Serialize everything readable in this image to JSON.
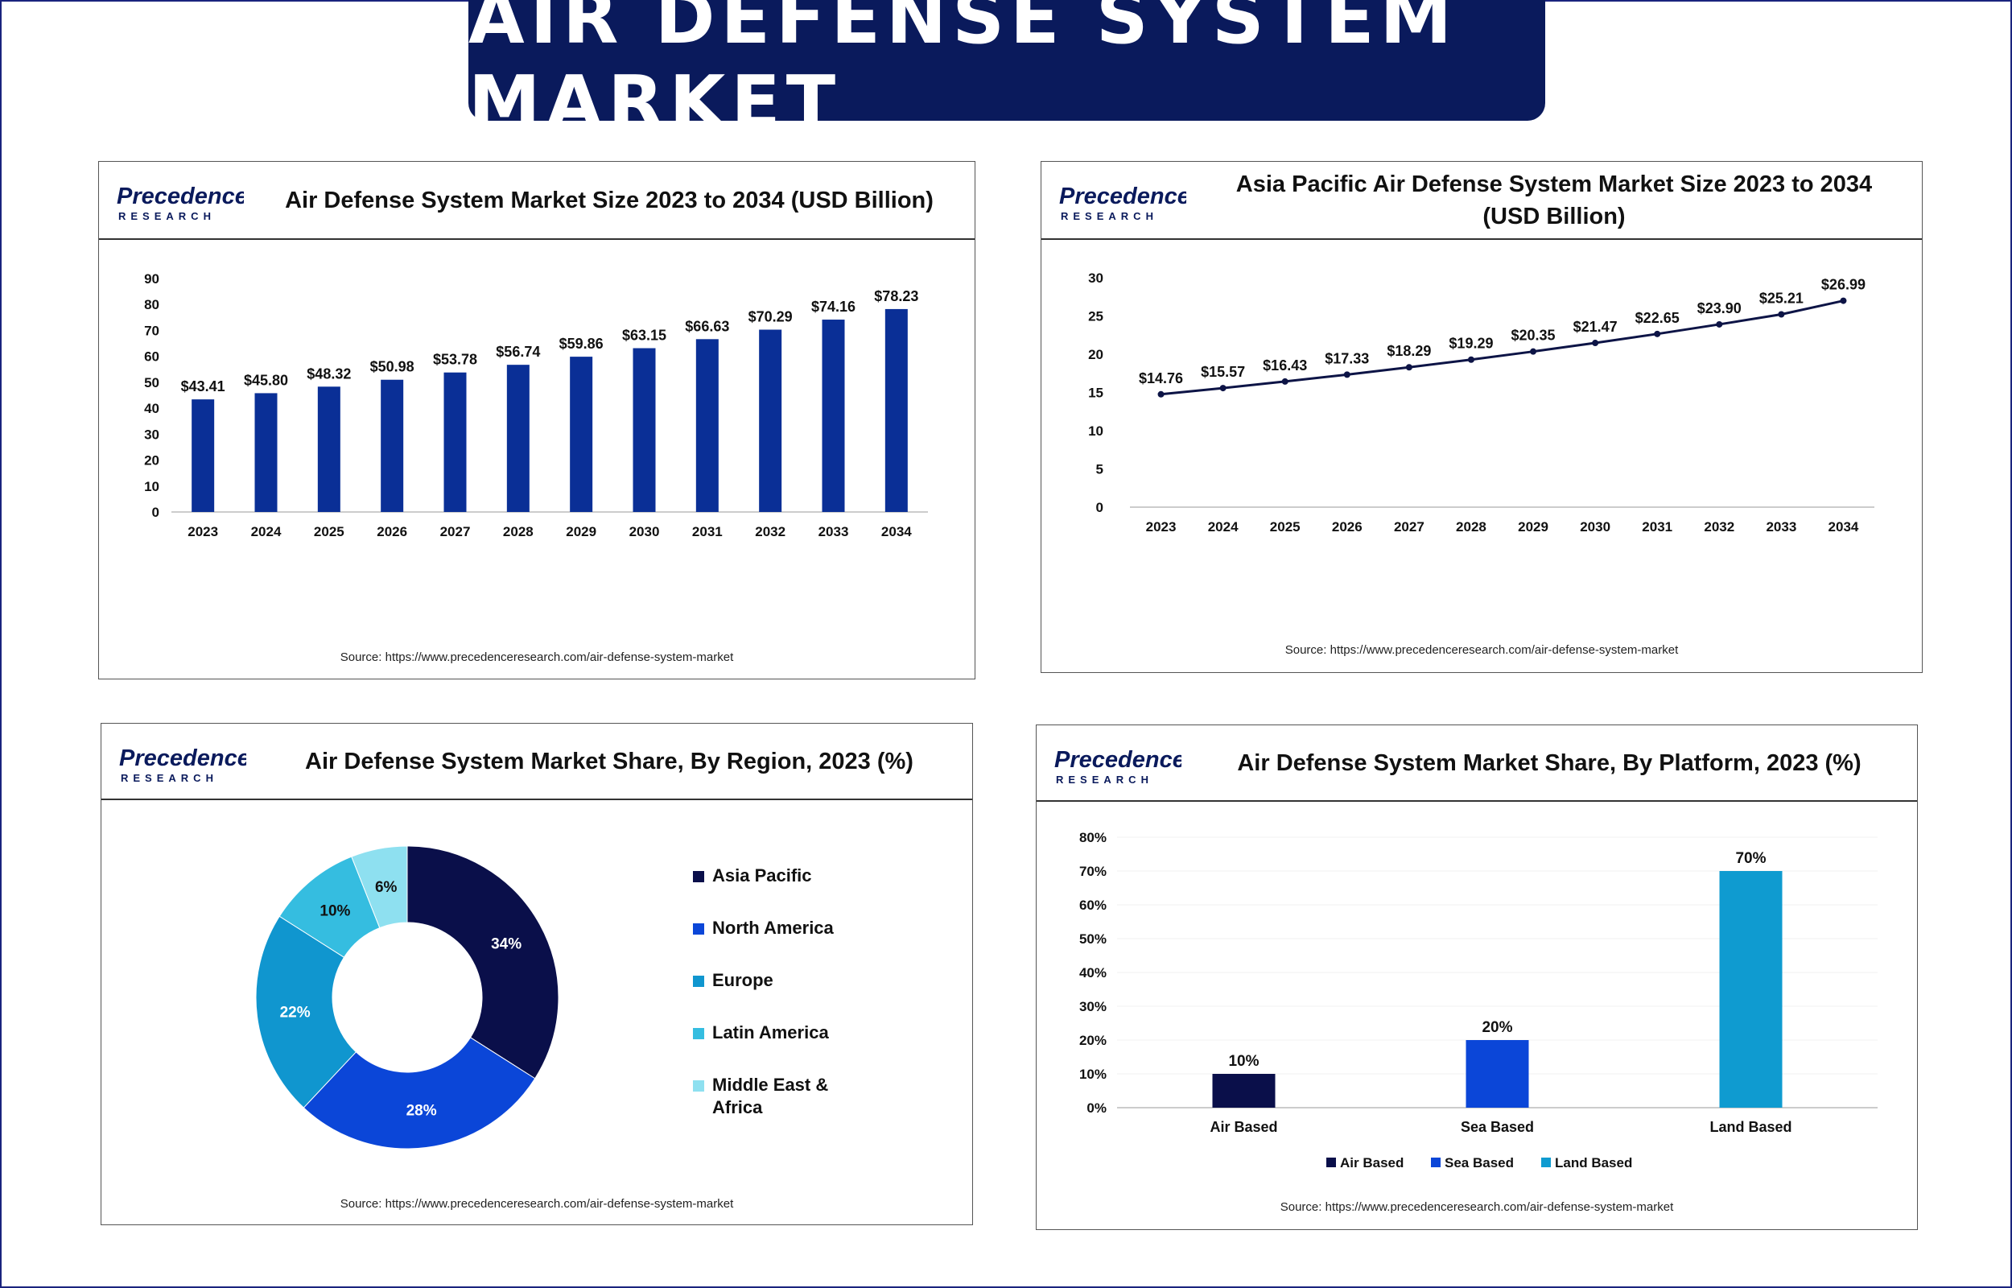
{
  "banner": {
    "title": "AIR DEFENSE SYSTEM MARKET"
  },
  "logo": {
    "brand_main": "Precedence",
    "brand_sub": "RESEARCH"
  },
  "source_text": "Source: https://www.precedenceresearch.com/air-defense-system-market",
  "colors": {
    "navy": "#0a1a5c",
    "bar": "#0a2f96",
    "line": "#0d1446"
  },
  "panels": {
    "market_size": {
      "title": "Air Defense System Market Size 2023 to 2034 (USD Billion)"
    },
    "asia_pacific": {
      "title_line1": "Asia Pacific Air Defense System Market Size 2023 to 2034",
      "title_line2": "(USD Billion)"
    },
    "region": {
      "title": "Air Defense System Market Share, By Region, 2023 (%)"
    },
    "platform": {
      "title": "Air Defense System Market Share, By Platform, 2023 (%)"
    }
  },
  "chart_data": [
    {
      "id": "market_size",
      "type": "bar",
      "title": "Air Defense System Market Size 2023 to 2034 (USD Billion)",
      "categories": [
        "2023",
        "2024",
        "2025",
        "2026",
        "2027",
        "2028",
        "2029",
        "2030",
        "2031",
        "2032",
        "2033",
        "2034"
      ],
      "values": [
        43.41,
        45.8,
        48.32,
        50.98,
        53.78,
        56.74,
        59.86,
        63.15,
        66.63,
        70.29,
        74.16,
        78.23
      ],
      "labels": [
        "$43.41",
        "$45.80",
        "$48.32",
        "$50.98",
        "$53.78",
        "$56.74",
        "$59.86",
        "$63.15",
        "$66.63",
        "$70.29",
        "$74.16",
        "$78.23"
      ],
      "yticks": [
        0,
        10,
        20,
        30,
        40,
        50,
        60,
        70,
        80,
        90
      ],
      "ylim": [
        0,
        90
      ],
      "color": "#0a2f96"
    },
    {
      "id": "asia_pacific",
      "type": "line",
      "title": "Asia Pacific Air Defense System Market Size 2023 to 2034 (USD Billion)",
      "categories": [
        "2023",
        "2024",
        "2025",
        "2026",
        "2027",
        "2028",
        "2029",
        "2030",
        "2031",
        "2032",
        "2033",
        "2034"
      ],
      "values": [
        14.76,
        15.57,
        16.43,
        17.33,
        18.29,
        19.29,
        20.35,
        21.47,
        22.65,
        23.9,
        25.21,
        26.99
      ],
      "labels": [
        "$14.76",
        "$15.57",
        "$16.43",
        "$17.33",
        "$18.29",
        "$19.29",
        "$20.35",
        "$21.47",
        "$22.65",
        "$23.90",
        "$25.21",
        "$26.99"
      ],
      "yticks": [
        0,
        5,
        10,
        15,
        20,
        25,
        30
      ],
      "ylim": [
        0,
        30
      ],
      "color": "#0d1446"
    },
    {
      "id": "region",
      "type": "pie",
      "title": "Air Defense System Market Share, By Region, 2023 (%)",
      "slices": [
        {
          "name": "Asia Pacific",
          "value": 34,
          "label": "34%",
          "color": "#0a0f4a",
          "label_color": "#ffffff"
        },
        {
          "name": "North America",
          "value": 28,
          "label": "28%",
          "color": "#0b46d8",
          "label_color": "#ffffff"
        },
        {
          "name": "Europe",
          "value": 22,
          "label": "22%",
          "color": "#1096cf",
          "label_color": "#ffffff"
        },
        {
          "name": "Latin America",
          "value": 10,
          "label": "10%",
          "color": "#35bde0",
          "label_color": "#111111"
        },
        {
          "name": "Middle East & Africa",
          "value": 6,
          "label": "6%",
          "color": "#8ee0f0",
          "label_color": "#111111"
        }
      ],
      "legend": [
        "Asia Pacific",
        "North America",
        "Europe",
        "Latin America",
        "Middle East &",
        "Africa"
      ]
    },
    {
      "id": "platform",
      "type": "bar",
      "title": "Air Defense System Market Share, By Platform, 2023 (%)",
      "categories": [
        "Air Based",
        "Sea Based",
        "Land Based"
      ],
      "values": [
        10,
        20,
        70
      ],
      "labels": [
        "10%",
        "20%",
        "70%"
      ],
      "colors": [
        "#0a0f4a",
        "#0b46d8",
        "#0f9bd0"
      ],
      "yticks": [
        "0%",
        "10%",
        "20%",
        "30%",
        "40%",
        "50%",
        "60%",
        "70%",
        "80%"
      ],
      "ylim": [
        0,
        80
      ],
      "legend": [
        "Air Based",
        "Sea Based",
        "Land Based"
      ]
    }
  ]
}
